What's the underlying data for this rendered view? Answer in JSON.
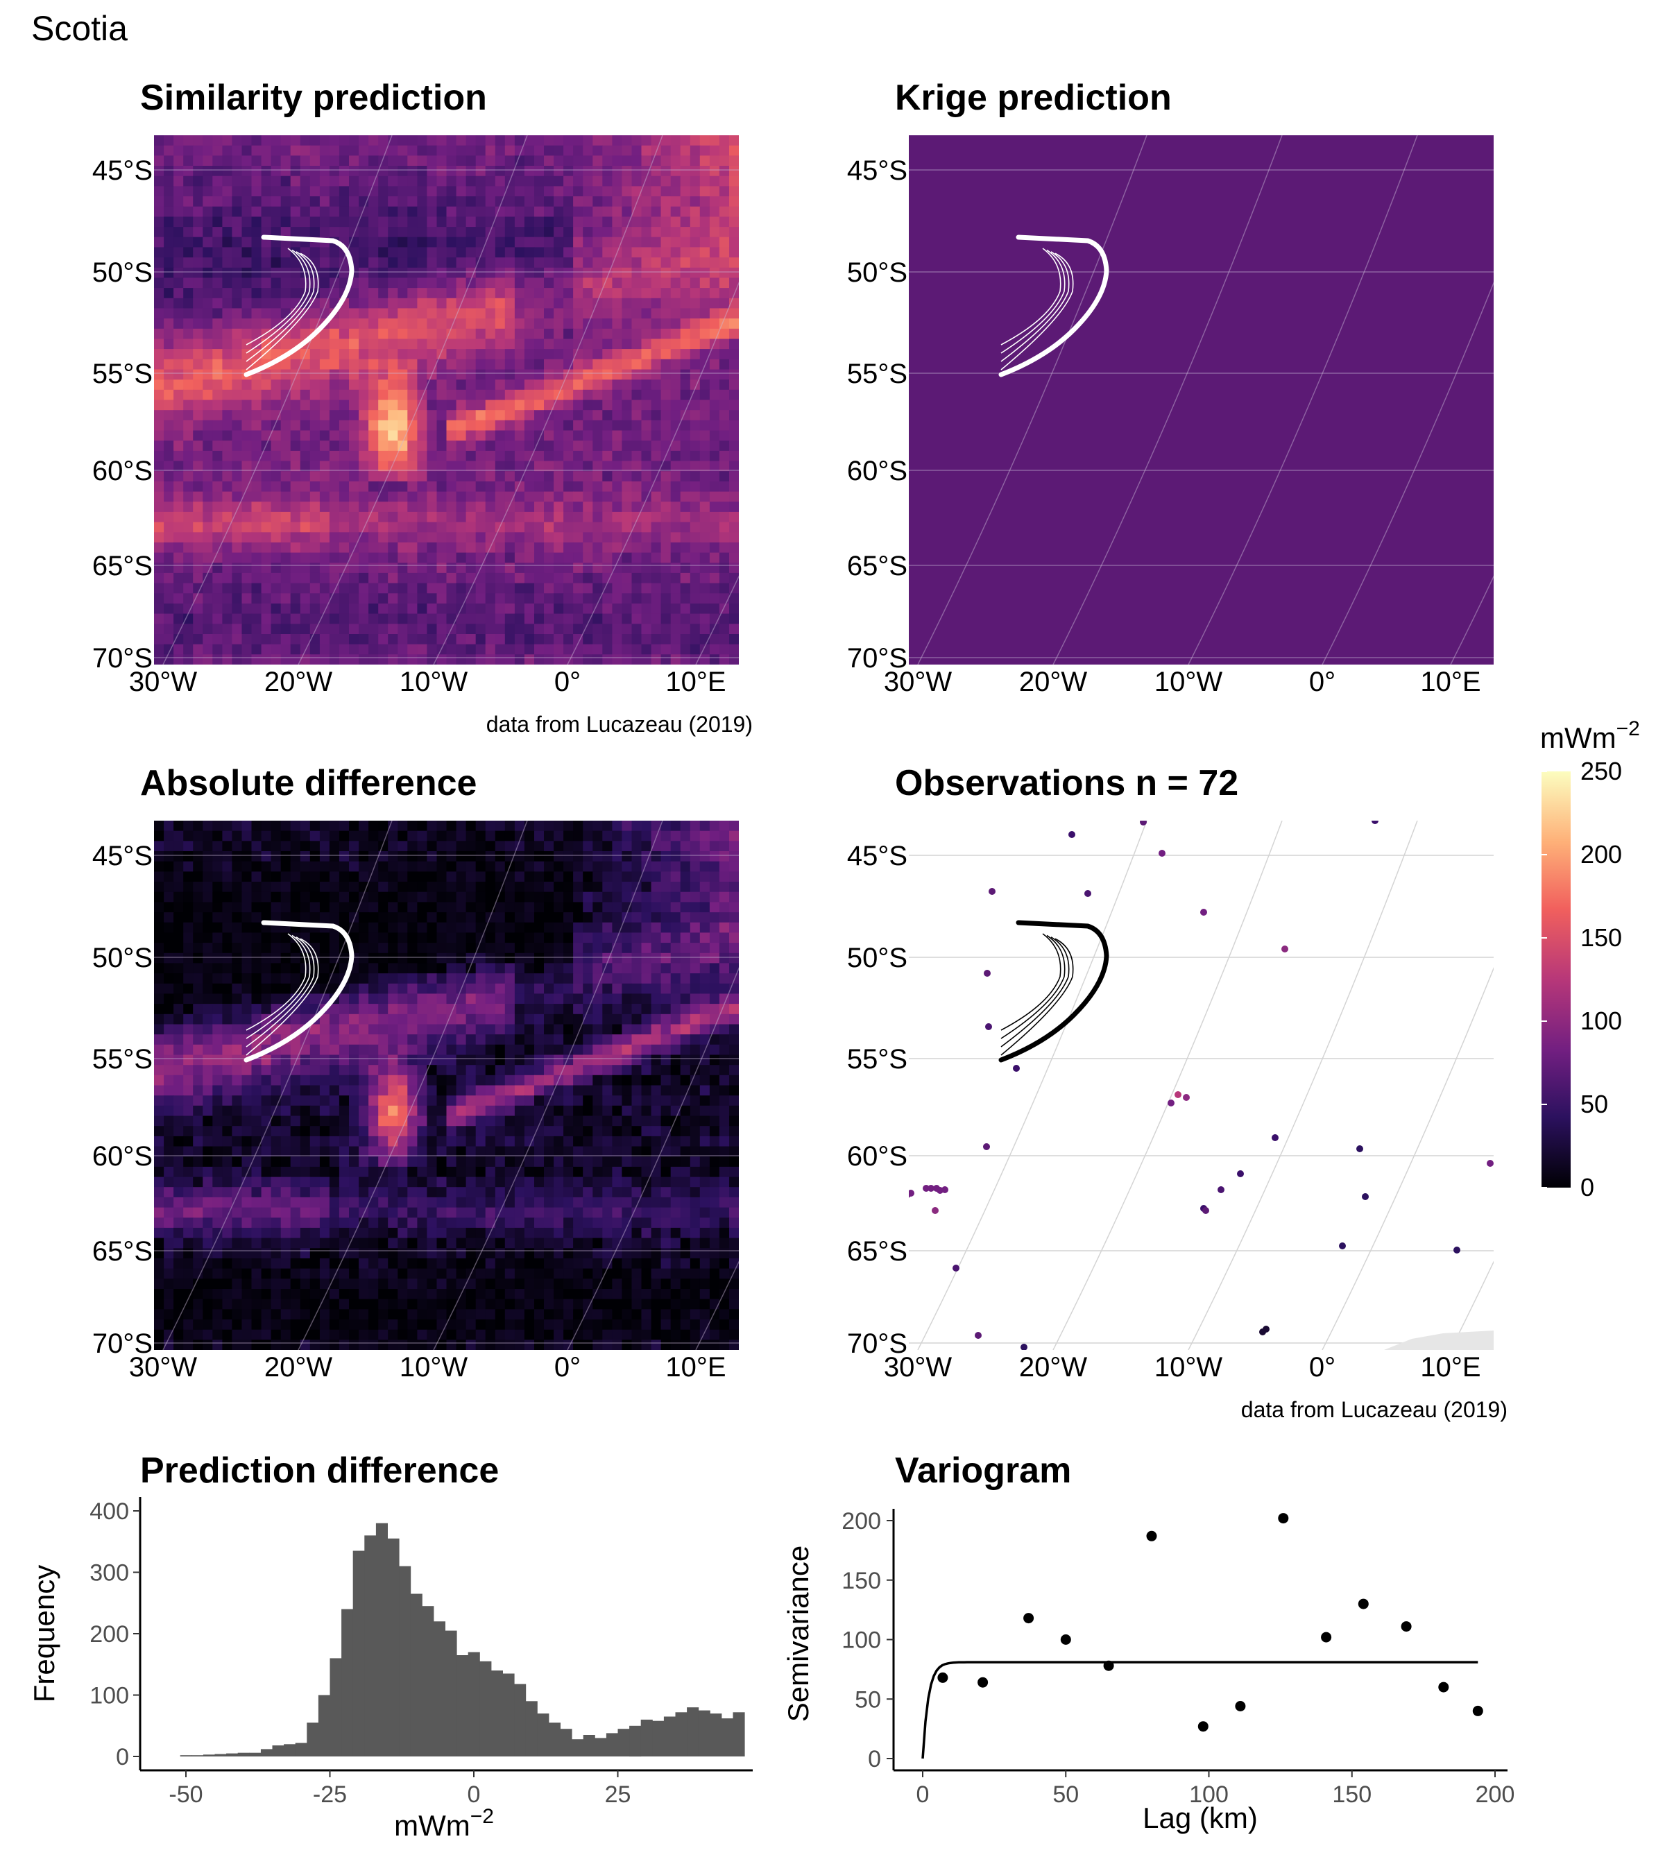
{
  "figure_title": "Scotia",
  "colors": {
    "map_background": "#5c1a75",
    "grid_line": "#c9b8d6",
    "white": "#ffffff",
    "bar_fill": "#595959",
    "point": "#000000",
    "palette": [
      "#000004",
      "#2c115f",
      "#721f81",
      "#b73779",
      "#f1605d",
      "#feb078",
      "#fcfdbf"
    ]
  },
  "maps": {
    "lat_ticks": [
      "45°S",
      "50°S",
      "55°S",
      "60°S",
      "65°S",
      "70°S"
    ],
    "lon_ticks": [
      "30°W",
      "20°W",
      "10°W",
      "0°",
      "10°E"
    ],
    "attribution": "data from Lucazeau (2019)",
    "similarity": {
      "title": "Similarity prediction"
    },
    "krige": {
      "title": "Krige prediction"
    },
    "absdiff": {
      "title": "Absolute difference"
    },
    "observations": {
      "title": "Observations",
      "n_label": "n = 72"
    }
  },
  "legend": {
    "unit": "mWm",
    "unit_exponent": "−2",
    "ticks": [
      "250",
      "200",
      "150",
      "100",
      "50",
      "0"
    ],
    "range": [
      0,
      250
    ]
  },
  "chart_data": [
    {
      "type": "bar",
      "title": "Prediction difference",
      "xlabel": "mWm",
      "xlabel_exponent": "−2",
      "ylabel": "Frequency",
      "xlim": [
        -57,
        45
      ],
      "ylim": [
        0,
        400
      ],
      "x_ticks": [
        "-50",
        "-25",
        "0",
        "25"
      ],
      "y_ticks": [
        "0",
        "100",
        "200",
        "300",
        "400"
      ],
      "bin_width": 2,
      "bins_start": -51,
      "counts": [
        2,
        2,
        3,
        4,
        5,
        6,
        6,
        12,
        18,
        20,
        22,
        55,
        100,
        160,
        240,
        335,
        360,
        380,
        355,
        310,
        265,
        245,
        220,
        205,
        165,
        170,
        155,
        140,
        135,
        118,
        90,
        70,
        55,
        45,
        28,
        35,
        30,
        38,
        45,
        50,
        60,
        58,
        65,
        72,
        80,
        75,
        70,
        62,
        72
      ]
    },
    {
      "type": "scatter",
      "title": "Variogram",
      "xlabel": "Lag (km)",
      "ylabel": "Semivariance",
      "xlim": [
        -10,
        205
      ],
      "ylim": [
        -5,
        215
      ],
      "x_ticks": [
        "0",
        "50",
        "100",
        "150",
        "200"
      ],
      "y_ticks": [
        "0",
        "50",
        "100",
        "150",
        "200"
      ],
      "points": [
        {
          "x": 7,
          "y": 68
        },
        {
          "x": 21,
          "y": 64
        },
        {
          "x": 37,
          "y": 118
        },
        {
          "x": 50,
          "y": 100
        },
        {
          "x": 65,
          "y": 78
        },
        {
          "x": 80,
          "y": 187
        },
        {
          "x": 98,
          "y": 27
        },
        {
          "x": 111,
          "y": 44
        },
        {
          "x": 126,
          "y": 202
        },
        {
          "x": 141,
          "y": 102
        },
        {
          "x": 154,
          "y": 130
        },
        {
          "x": 169,
          "y": 111
        },
        {
          "x": 182,
          "y": 60
        },
        {
          "x": 194,
          "y": 40
        }
      ],
      "model_curve": {
        "nugget": 0,
        "sill": 81,
        "range": 6,
        "x_max": 194
      }
    }
  ]
}
